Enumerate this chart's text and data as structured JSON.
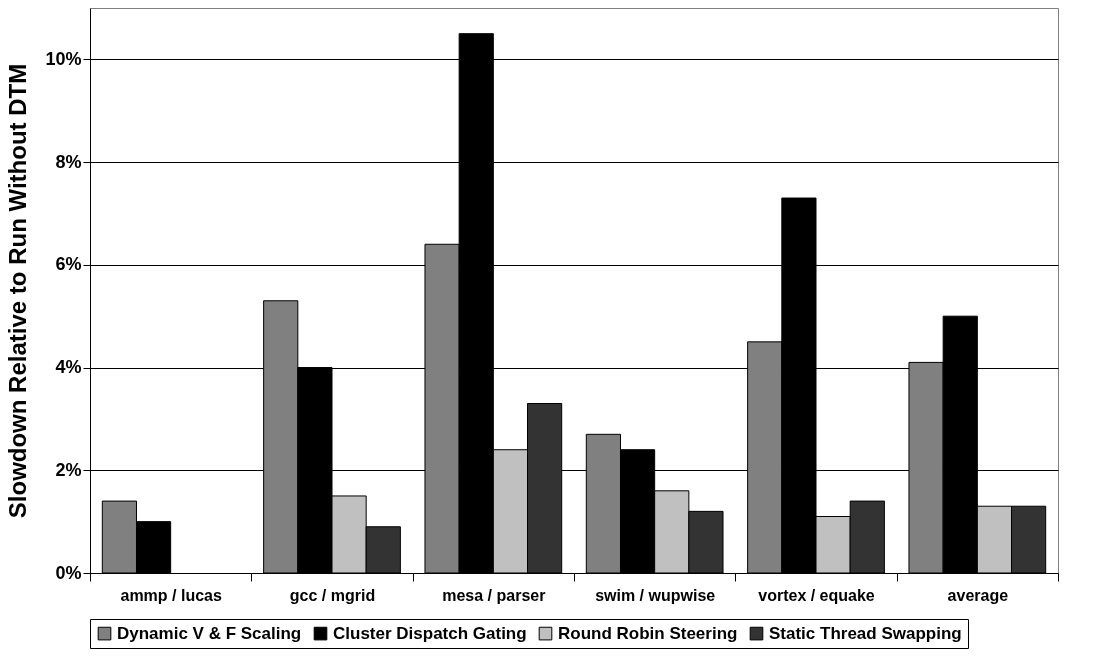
{
  "chart_data": {
    "type": "bar",
    "ylabel": "Slowdown Relative to Run Without DTM",
    "categories": [
      "ammp / lucas",
      "gcc / mgrid",
      "mesa / parser",
      "swim / wupwise",
      "vortex / equake",
      "average"
    ],
    "series": [
      {
        "name": "Dynamic V & F Scaling",
        "color": "#808080",
        "values": [
          1.4,
          5.3,
          6.4,
          2.7,
          4.5,
          4.1
        ]
      },
      {
        "name": "Cluster Dispatch Gating",
        "color": "#000000",
        "values": [
          1.0,
          4.0,
          10.5,
          2.4,
          7.3,
          5.0
        ]
      },
      {
        "name": "Round Robin Steering",
        "color": "#c0c0c0",
        "values": [
          null,
          1.5,
          2.4,
          1.6,
          1.1,
          1.3
        ]
      },
      {
        "name": "Static Thread Swapping",
        "color": "#333333",
        "values": [
          null,
          0.9,
          3.3,
          1.2,
          1.4,
          1.3
        ]
      }
    ],
    "ylim": [
      0,
      11
    ],
    "yticks": [
      {
        "value": 0,
        "label": "0%"
      },
      {
        "value": 2,
        "label": "2%"
      },
      {
        "value": 4,
        "label": "4%"
      },
      {
        "value": 6,
        "label": "6%"
      },
      {
        "value": 8,
        "label": "8%"
      },
      {
        "value": 10,
        "label": "10%"
      }
    ],
    "grid": "y",
    "legend": "bottom"
  }
}
